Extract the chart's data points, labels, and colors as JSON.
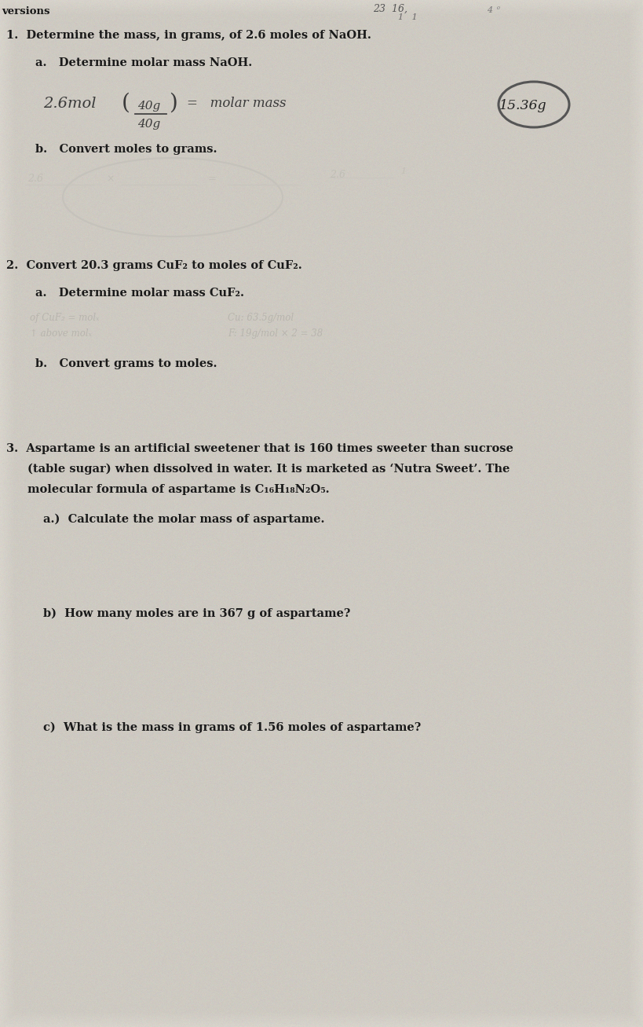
{
  "bg_color": "#cdc9c0",
  "paper_color": "#d8d4cc",
  "text_color": "#1a1a1a",
  "dark_text": "#2c2c2c",
  "handwrite_color": "#3a3a3a",
  "faint_color": "#a0a0a0",
  "circle_color": "#555555",
  "header": "versions",
  "q1_main": "1.  Determine the mass, in grams, of 2.6 moles of NaOH.",
  "q1a": "a.   Determine molar mass NaOH.",
  "q1b": "b.   Convert moles to grams.",
  "q2_main": "2.  Convert 20.3 grams CuF₂ to moles of CuF₂.",
  "q2a": "a.   Determine molar mass CuF₂.",
  "q2b": "b.   Convert grams to moles.",
  "q3_line1": "3.  Aspartame is an artificial sweetener that is 160 times sweeter than sucrose",
  "q3_line2": "    (table sugar) when dissolved in water. It is marketed as ‘Nutra Sweet’. The",
  "q3_line3": "    molecular formula of aspartame is C₁₆H₁₈N₂O₅.",
  "q3a": "a.)  Calculate the molar mass of aspartame.",
  "q3b": "b)  How many moles are in 367 g of aspartame?",
  "q3c": "c)  What is the mass in grams of 1.56 moles of aspartame?",
  "figw": 8.2,
  "figh": 13.07,
  "dpi": 100
}
